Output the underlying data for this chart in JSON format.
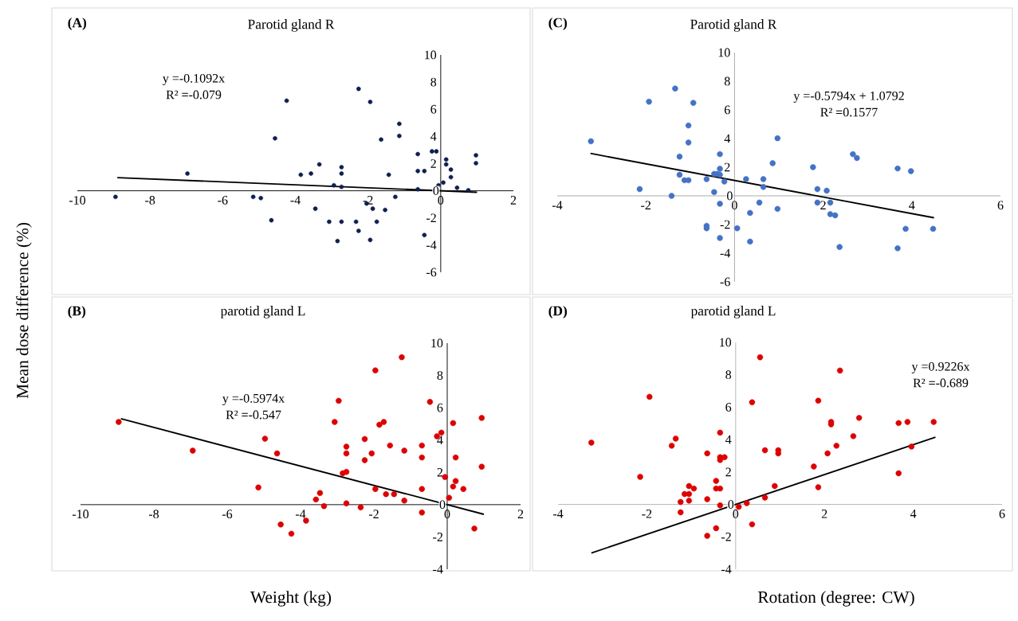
{
  "chart_data": [
    {
      "type": "scatter",
      "title": "Parotid gland R",
      "ylabel": "Mean dose difference (%)",
      "annotations": [
        "(A)",
        "y =-0.1092x",
        "R² =-0.079"
      ],
      "xlim": [
        -10,
        2
      ],
      "xticks": [
        -10,
        -8,
        -6,
        -4,
        -2,
        0,
        2
      ],
      "ylim": [
        -6,
        10
      ],
      "yticks": [
        -6,
        -4,
        -2,
        0,
        2,
        4,
        6,
        8,
        10
      ],
      "series": [
        {
          "marker": "circle",
          "color": "#0f1f4f",
          "x": [
            -8.95,
            -6.97,
            -5.16,
            -4.95,
            -4.66,
            -4.56,
            -4.24,
            -3.85,
            -3.57,
            -3.45,
            -3.34,
            -3.07,
            -2.94,
            -2.84,
            -2.73,
            -2.73,
            -2.73,
            -2.73,
            -2.33,
            -2.26,
            -2.26,
            -2.04,
            -1.94,
            -1.94,
            -1.87,
            -1.76,
            -1.64,
            -1.53,
            -1.43,
            -1.25,
            -1.14,
            -1.14,
            -0.63,
            -0.63,
            -0.63,
            -0.45,
            -0.45,
            -0.24,
            -0.12,
            -0.06,
            0.07,
            0.15,
            0.15,
            0.28,
            0.28,
            0.45,
            0.76,
            0.97,
            0.97
          ],
          "values": [
            -0.45,
            1.27,
            -0.45,
            -0.54,
            -2.17,
            3.86,
            6.63,
            1.18,
            1.27,
            -1.32,
            1.94,
            -2.28,
            0.4,
            -3.7,
            1.74,
            1.27,
            0.29,
            -2.28,
            -2.28,
            7.5,
            -2.95,
            -0.94,
            6.54,
            -3.62,
            -1.32,
            -2.28,
            3.77,
            -1.41,
            1.18,
            -0.45,
            4.93,
            4.04,
            2.7,
            1.45,
            0.11,
            1.45,
            -3.26,
            2.9,
            2.9,
            0.4,
            0.6,
            2.3,
            1.94,
            1.56,
            1.0,
            0.22,
            0.04,
            2.61,
            2.03
          ]
        },
        {
          "type": "line",
          "color": "#000000",
          "x": [
            -8.9,
            1.0
          ],
          "values": [
            0.97,
            -0.11
          ]
        }
      ]
    },
    {
      "type": "scatter",
      "title": "Parotid gland R",
      "annotations": [
        "(C)",
        "y =-0.5794x + 1.0792",
        "R² =0.1577"
      ],
      "xlim": [
        -4,
        6
      ],
      "xticks": [
        -4,
        -2,
        0,
        2,
        4,
        6
      ],
      "ylim": [
        -6,
        10
      ],
      "yticks": [
        -6,
        -4,
        -2,
        0,
        2,
        4,
        6,
        8,
        10
      ],
      "series": [
        {
          "marker": "circle",
          "color": "#4472c4",
          "x": [
            -3.24,
            -2.14,
            -1.93,
            -1.42,
            -1.34,
            -1.24,
            -1.24,
            -1.13,
            -1.04,
            -1.04,
            -1.04,
            -0.93,
            -0.63,
            -0.63,
            -0.63,
            -0.46,
            -0.46,
            -0.39,
            -0.33,
            -0.33,
            -0.33,
            -0.33,
            -0.33,
            -0.23,
            0.06,
            0.26,
            0.35,
            0.35,
            0.56,
            0.65,
            0.65,
            0.86,
            0.97,
            0.97,
            1.77,
            1.87,
            1.87,
            2.08,
            2.16,
            2.16,
            2.27,
            2.37,
            2.67,
            2.76,
            3.68,
            3.68,
            3.86,
            3.98,
            4.48
          ],
          "values": [
            3.81,
            0.47,
            6.57,
            0.0,
            7.49,
            2.74,
            1.47,
            1.09,
            1.09,
            3.72,
            4.91,
            6.49,
            1.17,
            -2.09,
            -2.26,
            1.53,
            0.26,
            1.53,
            2.91,
            1.89,
            1.47,
            -0.55,
            -2.94,
            1.0,
            -2.26,
            1.17,
            -1.19,
            -3.19,
            -0.47,
            1.17,
            0.62,
            2.28,
            4.02,
            -0.91,
            2.0,
            0.47,
            -0.47,
            0.36,
            -0.47,
            -1.28,
            -1.36,
            -3.57,
            2.91,
            2.64,
            1.91,
            -3.66,
            -2.3,
            1.72,
            -2.3
          ]
        },
        {
          "type": "line",
          "color": "#000000",
          "x": [
            -3.25,
            4.5
          ],
          "values": [
            2.96,
            -1.53
          ]
        }
      ]
    },
    {
      "type": "scatter",
      "title": "parotid gland L",
      "xlabel": "Weight (kg)",
      "annotations": [
        "(B)",
        "y =-0.5974x",
        "R² =-0.547"
      ],
      "xlim": [
        -10,
        2
      ],
      "xticks": [
        -10,
        -8,
        -6,
        -4,
        -2,
        0,
        2
      ],
      "ylim": [
        -4,
        10
      ],
      "yticks": [
        -4,
        -2,
        0,
        2,
        4,
        6,
        8,
        10
      ],
      "series": [
        {
          "marker": "circle",
          "color": "#dd0000",
          "x": [
            -8.96,
            -6.94,
            -5.15,
            -4.97,
            -4.64,
            -4.54,
            -4.25,
            -3.85,
            -3.58,
            -3.47,
            -3.36,
            -3.07,
            -2.96,
            -2.85,
            -2.75,
            -2.75,
            -2.75,
            -2.75,
            -2.36,
            -2.25,
            -2.25,
            -2.06,
            -1.96,
            -1.96,
            -1.85,
            -1.73,
            -1.67,
            -1.56,
            -1.45,
            -1.24,
            -1.17,
            -1.17,
            -0.69,
            -0.69,
            -0.69,
            -0.69,
            -0.47,
            -0.28,
            -0.16,
            -0.06,
            0.05,
            0.16,
            0.16,
            0.23,
            0.23,
            0.44,
            0.74,
            0.94,
            0.94
          ],
          "values": [
            5.12,
            3.34,
            1.06,
            4.08,
            3.17,
            -1.23,
            -1.8,
            -0.99,
            0.32,
            0.72,
            -0.09,
            5.12,
            6.43,
            1.94,
            2.03,
            3.59,
            3.17,
            0.08,
            -0.17,
            4.06,
            2.75,
            3.17,
            0.97,
            8.31,
            4.95,
            5.12,
            0.65,
            3.66,
            0.65,
            9.13,
            0.25,
            3.34,
            3.66,
            2.92,
            0.97,
            -0.49,
            6.36,
            4.23,
            4.46,
            1.71,
            0.42,
            1.12,
            5.05,
            2.92,
            1.46,
            0.97,
            -1.48,
            5.37,
            2.35
          ]
        },
        {
          "type": "line",
          "color": "#000000",
          "x": [
            -8.9,
            1.0
          ],
          "values": [
            5.32,
            -0.6
          ]
        }
      ]
    },
    {
      "type": "scatter",
      "title": "parotid gland L",
      "xlabel": "Rotation (degree: CW)",
      "annotations": [
        "(D)",
        "y =0.9226x",
        "R² =-0.689"
      ],
      "xlim": [
        -4,
        6
      ],
      "xticks": [
        -4,
        -2,
        0,
        2,
        4,
        6
      ],
      "ylim": [
        -4,
        10
      ],
      "yticks": [
        -4,
        -2,
        0,
        2,
        4,
        6,
        8,
        10
      ],
      "series": [
        {
          "marker": "circle",
          "color": "#dd0000",
          "x": [
            -3.25,
            -2.15,
            -1.94,
            -1.44,
            -1.35,
            -1.24,
            -1.24,
            -1.15,
            -1.05,
            -1.05,
            -1.05,
            -0.94,
            -0.64,
            -0.64,
            -0.64,
            -0.44,
            -0.44,
            -0.44,
            -0.35,
            -0.35,
            -0.35,
            -0.35,
            -0.35,
            -0.25,
            0.07,
            0.25,
            0.37,
            0.37,
            0.55,
            0.66,
            0.66,
            0.88,
            0.96,
            0.96,
            1.76,
            1.86,
            1.86,
            2.07,
            2.15,
            2.15,
            2.27,
            2.35,
            2.65,
            2.78,
            3.67,
            3.67,
            3.87,
            3.96,
            4.46
          ],
          "values": [
            3.81,
            1.7,
            6.64,
            3.62,
            4.06,
            0.15,
            -0.49,
            0.64,
            1.13,
            0.23,
            0.64,
            0.98,
            3.15,
            0.32,
            -1.94,
            1.45,
            0.98,
            -1.47,
            4.43,
            2.74,
            2.91,
            0.98,
            -0.06,
            2.91,
            -0.15,
            0.08,
            6.3,
            -1.23,
            9.08,
            0.42,
            3.34,
            1.13,
            3.34,
            3.15,
            2.34,
            6.4,
            1.06,
            3.15,
            5.09,
            4.94,
            3.62,
            8.26,
            4.21,
            5.34,
            5.02,
            1.92,
            5.09,
            3.57,
            5.09
          ]
        },
        {
          "type": "line",
          "color": "#000000",
          "x": [
            -3.25,
            4.5
          ],
          "values": [
            -3.0,
            4.15
          ]
        }
      ]
    }
  ]
}
